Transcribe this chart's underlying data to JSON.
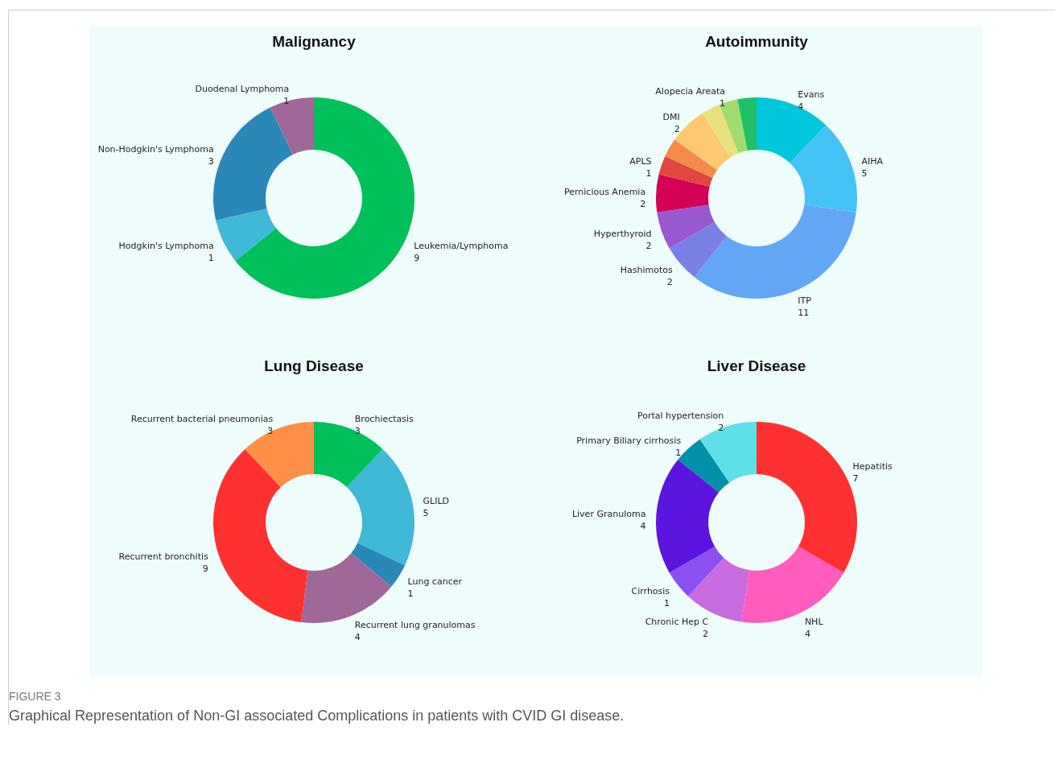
{
  "chart_data": [
    {
      "type": "donut",
      "title": "Malignancy",
      "categories": [
        "Leukemia/Lymphoma",
        "Hodgkin's Lymphoma",
        "Non-Hodgkin's Lymphoma",
        "Duodenal Lymphoma"
      ],
      "values": [
        9,
        1,
        3,
        1
      ],
      "colors": [
        "#00c05a",
        "#40b8d8",
        "#2a88b8",
        "#a06898"
      ],
      "data_labels": true,
      "annotations": [
        "FIGURE 3",
        "Graphical Representation of Non-GI associated Complications in patients with CVID GI disease."
      ]
    },
    {
      "type": "donut",
      "title": "Autoimmunity",
      "categories": [
        "Evans",
        "AIHA",
        "ITP",
        "Hashimotos",
        "Hyperthyroid",
        "Pernicious Anemia",
        "APLS",
        null,
        "DMI",
        null,
        "Alopecia Areata",
        null
      ],
      "values": [
        4,
        5,
        11,
        2,
        2,
        2,
        1,
        1,
        2,
        1,
        1,
        1
      ],
      "colors": [
        "#00c8dc",
        "#45c3f5",
        "#62a6f5",
        "#7a80e5",
        "#9a58d0",
        "#d40056",
        "#e0483f",
        "#f28c48",
        "#fcc870",
        "#e8e07a",
        "#a0dc70",
        "#20c068"
      ],
      "value_labels": [
        "4",
        "5",
        "11",
        "2",
        "2",
        "2",
        "1",
        null,
        "2",
        null,
        "1",
        null
      ]
    },
    {
      "type": "donut",
      "title": "Lung Disease",
      "categories": [
        "Brochiectasis",
        "GLILD",
        "Lung cancer",
        "Recurrent lung granulomas",
        "Recurrent bronchitis",
        "Recurrent bacterial pneumonias"
      ],
      "values": [
        3,
        5,
        1,
        4,
        9,
        3
      ],
      "colors": [
        "#00c05a",
        "#40b8d8",
        "#2a88b8",
        "#a06898",
        "#ff3030",
        "#ff9048"
      ],
      "data_labels": true
    },
    {
      "type": "donut",
      "title": "Liver  Disease",
      "categories": [
        "Hepatitis",
        "NHL",
        "Chronic Hep C",
        "Cirrhosis",
        "Liver Granuloma",
        "Primary Biliary cirrhosis",
        "Portal hypertension"
      ],
      "values": [
        7,
        4,
        2,
        1,
        4,
        1,
        2
      ],
      "colors": [
        "#ff3030",
        "#ff5cbd",
        "#c86ae0",
        "#8a50f0",
        "#5c14e0",
        "#0090a8",
        "#5ee0e6"
      ],
      "data_labels": true
    }
  ]
}
